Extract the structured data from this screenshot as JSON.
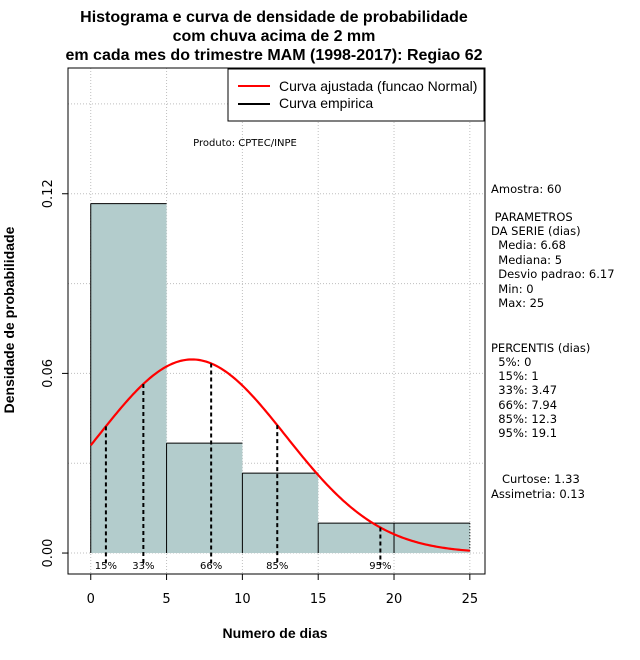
{
  "chart_data": {
    "type": "bar",
    "title_lines": [
      "Histograma e curva de densidade de probabilidade",
      "com chuva acima de 2 mm",
      "em cada mes do trimestre MAM (1998-2017): Regiao 62"
    ],
    "xlabel": "Numero de dias",
    "ylabel": "Densidade de probabilidade",
    "xlim": [
      -1.5,
      26
    ],
    "ylim": [
      -0.007,
      0.162
    ],
    "x_ticks": [
      "0",
      "5",
      "10",
      "15",
      "20",
      "25"
    ],
    "y_ticks": [
      "0.00",
      "0.06",
      "0.12"
    ],
    "bins": [
      {
        "from": 0,
        "to": 5,
        "density": 0.1167
      },
      {
        "from": 5,
        "to": 10,
        "density": 0.0367
      },
      {
        "from": 10,
        "to": 15,
        "density": 0.0267
      },
      {
        "from": 15,
        "to": 20,
        "density": 0.01
      },
      {
        "from": 20,
        "to": 25,
        "density": 0.01
      }
    ],
    "normal_fit": {
      "mean": 6.68,
      "sd": 6.17,
      "from": 0,
      "to": 25
    },
    "percentile_lines": [
      {
        "label": "15%",
        "x": 1
      },
      {
        "label": "33%",
        "x": 3.47
      },
      {
        "label": "66%",
        "x": 7.94
      },
      {
        "label": "85%",
        "x": 12.3
      },
      {
        "label": "95%",
        "x": 19.1
      }
    ],
    "legend": {
      "placement": "top-right",
      "items": [
        {
          "label": "Curva ajustada (funcao Normal)",
          "color": "#ff0000"
        },
        {
          "label": "Curva empirica",
          "color": "#000000"
        }
      ]
    },
    "annotation": "Produto: CPTEC/INPE",
    "bar_fill": "#b3cccc",
    "grid_color": "#bfbfbf",
    "fit_color": "#ff0000"
  },
  "stats_panel": [
    "Amostra: 60",
    " PARAMETROS",
    "DA SERIE (dias)",
    "  Media: 6.68",
    "  Mediana: 5",
    "  Desvio padrao: 6.17",
    "  Min: 0",
    "  Max: 25",
    "PERCENTIS (dias)",
    "  5%: 0",
    "  15%: 1",
    "  33%: 3.47",
    "  66%: 7.94",
    "  85%: 12.3",
    "  95%: 19.1",
    "   Curtose: 1.33",
    "Assimetria: 0.13"
  ]
}
